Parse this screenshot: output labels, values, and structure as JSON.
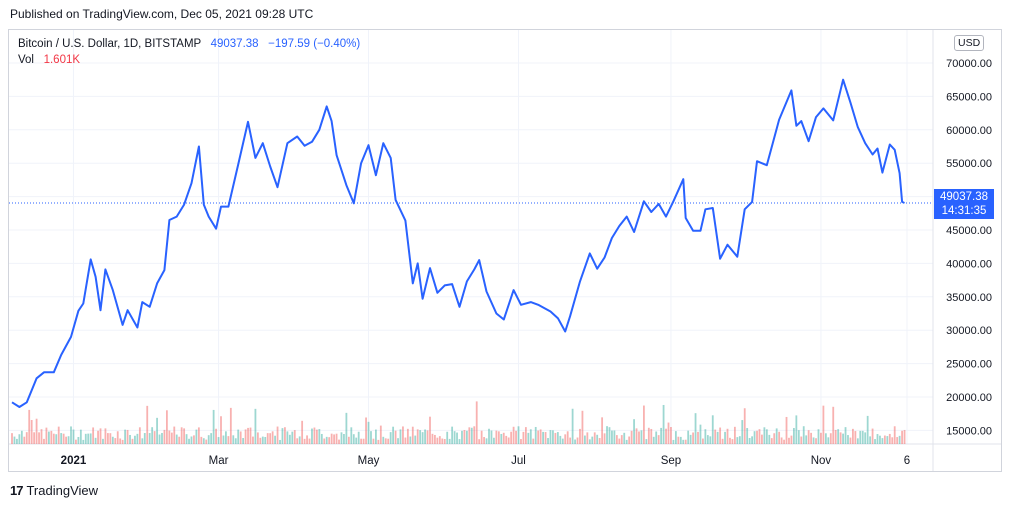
{
  "header": {
    "published": "Published on TradingView.com, Dec 05, 2021 09:28 UTC"
  },
  "legend": {
    "symbol": "Bitcoin / U.S. Dollar, 1D, BITSTAMP",
    "last": "49037.38",
    "change": "−197.59 (−0.40%)",
    "vol_label": "Vol",
    "vol_value": "1.601K"
  },
  "currency": "USD",
  "price_tag": {
    "price": "49037.38",
    "countdown": "14:31:35"
  },
  "footer": {
    "logo": "17",
    "brand": "TradingView"
  },
  "colors": {
    "line": "#2962ff",
    "vol_up": "#26a69a",
    "vol_down": "#ef5350",
    "grid": "#f0f3fa"
  },
  "chart_data": {
    "type": "line",
    "title": "Bitcoin / U.S. Dollar, 1D, BITSTAMP",
    "x_range": [
      "2020-12-07",
      "2021-12-05"
    ],
    "ylim": [
      12000,
      73000
    ],
    "y_ticks": [
      15000,
      20000,
      25000,
      30000,
      35000,
      40000,
      45000,
      50000,
      55000,
      60000,
      65000,
      70000
    ],
    "y_tick_labels": [
      "15000.00",
      "20000.00",
      "25000.00",
      "30000.00",
      "35000.00",
      "40000.00",
      "45000.00",
      "50000.00",
      "55000.00",
      "60000.00",
      "65000.00",
      "70000.00"
    ],
    "x_ticks": [
      {
        "date": "2021-01-01",
        "label": "2021"
      },
      {
        "date": "2021-03-01",
        "label": "Mar"
      },
      {
        "date": "2021-05-01",
        "label": "May"
      },
      {
        "date": "2021-07-01",
        "label": "Jul"
      },
      {
        "date": "2021-09-01",
        "label": "Sep"
      },
      {
        "date": "2021-11-01",
        "label": "Nov"
      },
      {
        "date": "2021-12-06",
        "label": "6"
      }
    ],
    "series": [
      {
        "values": [
          [
            "2020-12-07",
            19200
          ],
          [
            "2020-12-10",
            18500
          ],
          [
            "2020-12-13",
            19200
          ],
          [
            "2020-12-17",
            22800
          ],
          [
            "2020-12-20",
            23700
          ],
          [
            "2020-12-24",
            23700
          ],
          [
            "2020-12-27",
            26300
          ],
          [
            "2020-12-31",
            29000
          ],
          [
            "2021-01-03",
            32900
          ],
          [
            "2021-01-05",
            34000
          ],
          [
            "2021-01-08",
            40600
          ],
          [
            "2021-01-10",
            38000
          ],
          [
            "2021-01-12",
            33000
          ],
          [
            "2021-01-14",
            39100
          ],
          [
            "2021-01-17",
            36000
          ],
          [
            "2021-01-21",
            30800
          ],
          [
            "2021-01-23",
            33000
          ],
          [
            "2021-01-27",
            30400
          ],
          [
            "2021-01-29",
            34200
          ],
          [
            "2021-02-01",
            33500
          ],
          [
            "2021-02-04",
            37000
          ],
          [
            "2021-02-07",
            39000
          ],
          [
            "2021-02-09",
            46500
          ],
          [
            "2021-02-12",
            47000
          ],
          [
            "2021-02-15",
            48800
          ],
          [
            "2021-02-18",
            52000
          ],
          [
            "2021-02-21",
            57500
          ],
          [
            "2021-02-23",
            48800
          ],
          [
            "2021-02-25",
            47000
          ],
          [
            "2021-02-28",
            45200
          ],
          [
            "2021-03-02",
            48500
          ],
          [
            "2021-03-05",
            48500
          ],
          [
            "2021-03-09",
            54800
          ],
          [
            "2021-03-13",
            61200
          ],
          [
            "2021-03-16",
            55800
          ],
          [
            "2021-03-19",
            58000
          ],
          [
            "2021-03-22",
            54500
          ],
          [
            "2021-03-25",
            51400
          ],
          [
            "2021-03-29",
            58000
          ],
          [
            "2021-04-02",
            59000
          ],
          [
            "2021-04-05",
            57600
          ],
          [
            "2021-04-08",
            58200
          ],
          [
            "2021-04-11",
            60000
          ],
          [
            "2021-04-14",
            63500
          ],
          [
            "2021-04-16",
            61300
          ],
          [
            "2021-04-18",
            56200
          ],
          [
            "2021-04-22",
            51700
          ],
          [
            "2021-04-25",
            49000
          ],
          [
            "2021-04-28",
            55000
          ],
          [
            "2021-05-01",
            57700
          ],
          [
            "2021-05-04",
            53200
          ],
          [
            "2021-05-07",
            58000
          ],
          [
            "2021-05-10",
            55800
          ],
          [
            "2021-05-12",
            49500
          ],
          [
            "2021-05-16",
            46400
          ],
          [
            "2021-05-19",
            37000
          ],
          [
            "2021-05-21",
            40000
          ],
          [
            "2021-05-23",
            34700
          ],
          [
            "2021-05-26",
            39300
          ],
          [
            "2021-05-29",
            35600
          ],
          [
            "2021-06-01",
            36700
          ],
          [
            "2021-06-04",
            36900
          ],
          [
            "2021-06-07",
            33500
          ],
          [
            "2021-06-10",
            37300
          ],
          [
            "2021-06-13",
            39100
          ],
          [
            "2021-06-15",
            40500
          ],
          [
            "2021-06-18",
            35800
          ],
          [
            "2021-06-22",
            32500
          ],
          [
            "2021-06-25",
            31600
          ],
          [
            "2021-06-29",
            36000
          ],
          [
            "2021-07-02",
            33800
          ],
          [
            "2021-07-06",
            34200
          ],
          [
            "2021-07-09",
            33800
          ],
          [
            "2021-07-14",
            32800
          ],
          [
            "2021-07-17",
            31800
          ],
          [
            "2021-07-20",
            29800
          ],
          [
            "2021-07-22",
            32100
          ],
          [
            "2021-07-26",
            37300
          ],
          [
            "2021-07-30",
            41500
          ],
          [
            "2021-08-02",
            39200
          ],
          [
            "2021-08-05",
            40900
          ],
          [
            "2021-08-08",
            43800
          ],
          [
            "2021-08-11",
            45600
          ],
          [
            "2021-08-14",
            47000
          ],
          [
            "2021-08-17",
            44700
          ],
          [
            "2021-08-21",
            49300
          ],
          [
            "2021-08-24",
            47700
          ],
          [
            "2021-08-27",
            48900
          ],
          [
            "2021-08-30",
            47000
          ],
          [
            "2021-09-02",
            49300
          ],
          [
            "2021-09-06",
            52600
          ],
          [
            "2021-09-07",
            46800
          ],
          [
            "2021-09-10",
            44900
          ],
          [
            "2021-09-13",
            44900
          ],
          [
            "2021-09-15",
            48100
          ],
          [
            "2021-09-18",
            48300
          ],
          [
            "2021-09-21",
            40700
          ],
          [
            "2021-09-24",
            42800
          ],
          [
            "2021-09-28",
            41000
          ],
          [
            "2021-10-01",
            48100
          ],
          [
            "2021-10-04",
            49200
          ],
          [
            "2021-10-06",
            55300
          ],
          [
            "2021-10-10",
            54700
          ],
          [
            "2021-10-15",
            61500
          ],
          [
            "2021-10-20",
            65900
          ],
          [
            "2021-10-22",
            60600
          ],
          [
            "2021-10-24",
            61300
          ],
          [
            "2021-10-27",
            58300
          ],
          [
            "2021-10-30",
            61900
          ],
          [
            "2021-11-02",
            63200
          ],
          [
            "2021-11-06",
            61400
          ],
          [
            "2021-11-10",
            67500
          ],
          [
            "2021-11-13",
            64100
          ],
          [
            "2021-11-16",
            60400
          ],
          [
            "2021-11-19",
            58000
          ],
          [
            "2021-11-22",
            56300
          ],
          [
            "2021-11-24",
            57200
          ],
          [
            "2021-11-26",
            53600
          ],
          [
            "2021-11-29",
            57800
          ],
          [
            "2021-12-01",
            57000
          ],
          [
            "2021-12-03",
            53500
          ],
          [
            "2021-12-04",
            49200
          ],
          [
            "2021-12-05",
            49037
          ]
        ]
      }
    ],
    "volume_seed": 7,
    "last_price": 49037.38
  }
}
